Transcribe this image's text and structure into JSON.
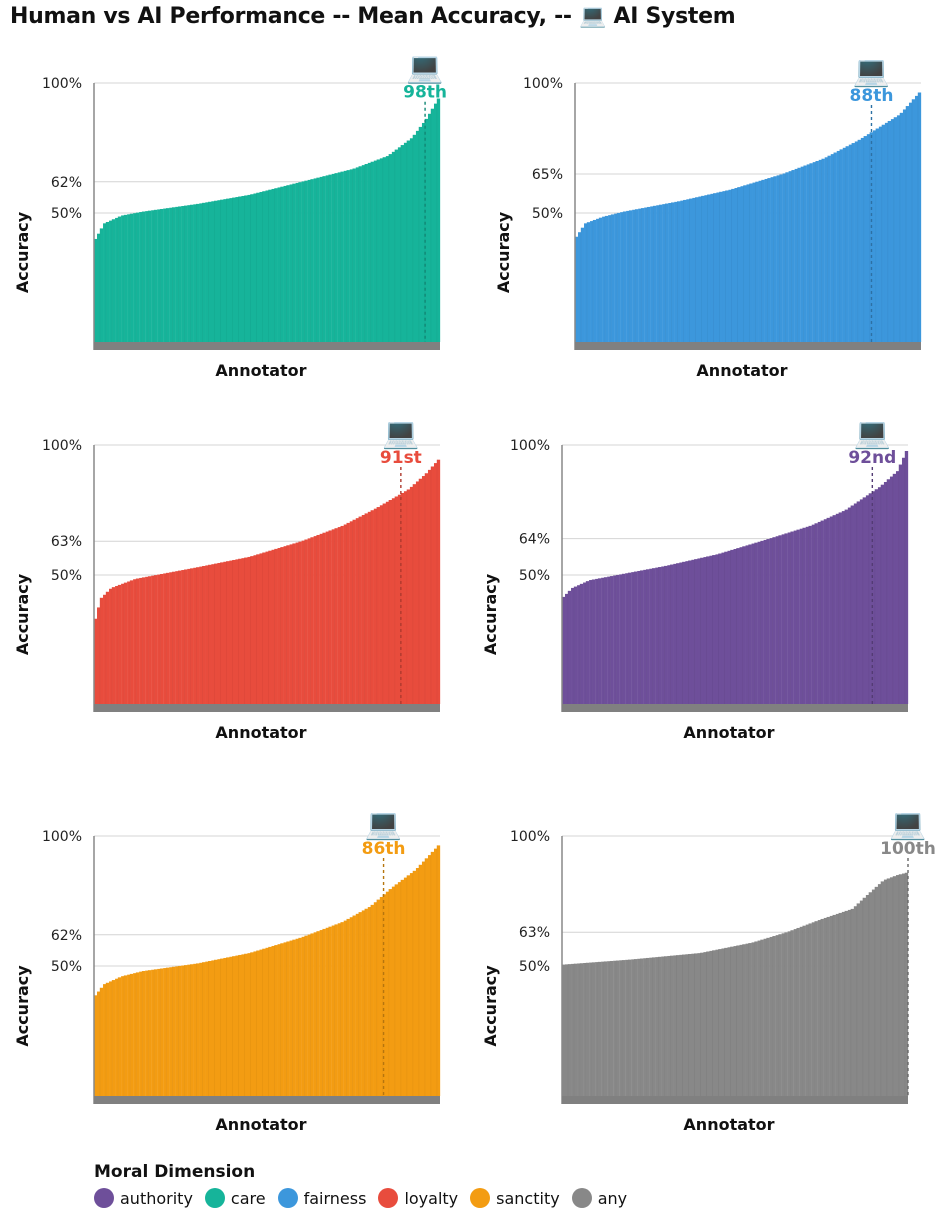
{
  "title": "Human vs AI Performance -- Mean Accuracy, -- 💻 AI System",
  "ai_icon": "💻",
  "legend": {
    "title": "Moral Dimension",
    "items": [
      {
        "label": "authority",
        "color": "#6e4f9a"
      },
      {
        "label": "care",
        "color": "#16b49a"
      },
      {
        "label": "fairness",
        "color": "#3c97dc"
      },
      {
        "label": "loyalty",
        "color": "#e84c3d"
      },
      {
        "label": "sanctity",
        "color": "#f39c12"
      },
      {
        "label": "any",
        "color": "#888888"
      }
    ]
  },
  "chart_data": [
    {
      "type": "bar",
      "dimension": "care",
      "color": "#16b49a",
      "xlabel": "Annotator",
      "ylabel": "Accuracy",
      "tick_labels": [
        "100%",
        "62%",
        "50%"
      ],
      "ticks": [
        100,
        62,
        50
      ],
      "ylim": [
        0,
        100
      ],
      "ai_percentile_label": "98th",
      "ai_percentile": 98,
      "curve": [
        [
          0,
          39
        ],
        [
          3,
          46
        ],
        [
          8,
          49
        ],
        [
          14,
          50.5
        ],
        [
          30,
          53.5
        ],
        [
          45,
          57
        ],
        [
          60,
          62
        ],
        [
          75,
          67
        ],
        [
          85,
          72
        ],
        [
          92,
          79
        ],
        [
          96,
          86
        ],
        [
          100,
          95
        ]
      ]
    },
    {
      "type": "bar",
      "dimension": "fairness",
      "color": "#3c97dc",
      "xlabel": "Annotator",
      "ylabel": "Accuracy",
      "tick_labels": [
        "100%",
        "65%",
        "50%"
      ],
      "ticks": [
        100,
        65,
        50
      ],
      "ylim": [
        0,
        100
      ],
      "ai_percentile_label": "88th",
      "ai_percentile": 88,
      "curve": [
        [
          0,
          40
        ],
        [
          3,
          46
        ],
        [
          8,
          48.5
        ],
        [
          14,
          50.5
        ],
        [
          30,
          54.5
        ],
        [
          45,
          59
        ],
        [
          60,
          65
        ],
        [
          72,
          71
        ],
        [
          82,
          78
        ],
        [
          88,
          83
        ],
        [
          94,
          88
        ],
        [
          100,
          97
        ]
      ]
    },
    {
      "type": "bar",
      "dimension": "loyalty",
      "color": "#e84c3d",
      "xlabel": "Annotator",
      "ylabel": "Accuracy",
      "tick_labels": [
        "100%",
        "63%",
        "50%"
      ],
      "ticks": [
        100,
        63,
        50
      ],
      "ylim": [
        0,
        100
      ],
      "ai_percentile_label": "91st",
      "ai_percentile": 91,
      "curve": [
        [
          0,
          31
        ],
        [
          2,
          41
        ],
        [
          5,
          45
        ],
        [
          12,
          48.5
        ],
        [
          30,
          53
        ],
        [
          45,
          57
        ],
        [
          60,
          63
        ],
        [
          72,
          69
        ],
        [
          82,
          76
        ],
        [
          91,
          83
        ],
        [
          96,
          89
        ],
        [
          100,
          95
        ]
      ]
    },
    {
      "type": "bar",
      "dimension": "authority",
      "color": "#6e4f9a",
      "xlabel": "Annotator",
      "ylabel": "Accuracy",
      "tick_labels": [
        "100%",
        "64%",
        "50%"
      ],
      "ticks": [
        100,
        64,
        50
      ],
      "ylim": [
        0,
        100
      ],
      "ai_percentile_label": "92nd",
      "ai_percentile": 92,
      "curve": [
        [
          0,
          41
        ],
        [
          3,
          45
        ],
        [
          8,
          48
        ],
        [
          14,
          49.5
        ],
        [
          30,
          53.5
        ],
        [
          45,
          58
        ],
        [
          60,
          64
        ],
        [
          72,
          69
        ],
        [
          82,
          75
        ],
        [
          92,
          84
        ],
        [
          97,
          90
        ],
        [
          100,
          99
        ]
      ]
    },
    {
      "type": "bar",
      "dimension": "sanctity",
      "color": "#f39c12",
      "xlabel": "Annotator",
      "ylabel": "Accuracy",
      "tick_labels": [
        "100%",
        "62%",
        "50%"
      ],
      "ticks": [
        100,
        62,
        50
      ],
      "ylim": [
        0,
        100
      ],
      "ai_percentile_label": "86th",
      "ai_percentile": 86,
      "curve": [
        [
          0,
          38
        ],
        [
          3,
          43
        ],
        [
          8,
          46
        ],
        [
          14,
          48
        ],
        [
          30,
          51
        ],
        [
          45,
          55
        ],
        [
          60,
          61
        ],
        [
          72,
          67
        ],
        [
          80,
          73
        ],
        [
          86,
          80
        ],
        [
          93,
          87
        ],
        [
          100,
          97
        ]
      ]
    },
    {
      "type": "bar",
      "dimension": "any",
      "color": "#888888",
      "xlabel": "Annotator",
      "ylabel": "Accuracy",
      "tick_labels": [
        "100%",
        "63%",
        "50%"
      ],
      "ticks": [
        100,
        63,
        50
      ],
      "ylim": [
        0,
        100
      ],
      "ai_percentile_label": "100th",
      "ai_percentile": 100,
      "curve": [
        [
          0,
          50.5
        ],
        [
          20,
          52.5
        ],
        [
          40,
          55
        ],
        [
          55,
          59
        ],
        [
          65,
          63
        ],
        [
          75,
          68
        ],
        [
          84,
          72
        ],
        [
          88,
          77
        ],
        [
          93,
          83
        ],
        [
          97,
          85
        ],
        [
          100,
          86
        ]
      ]
    }
  ]
}
